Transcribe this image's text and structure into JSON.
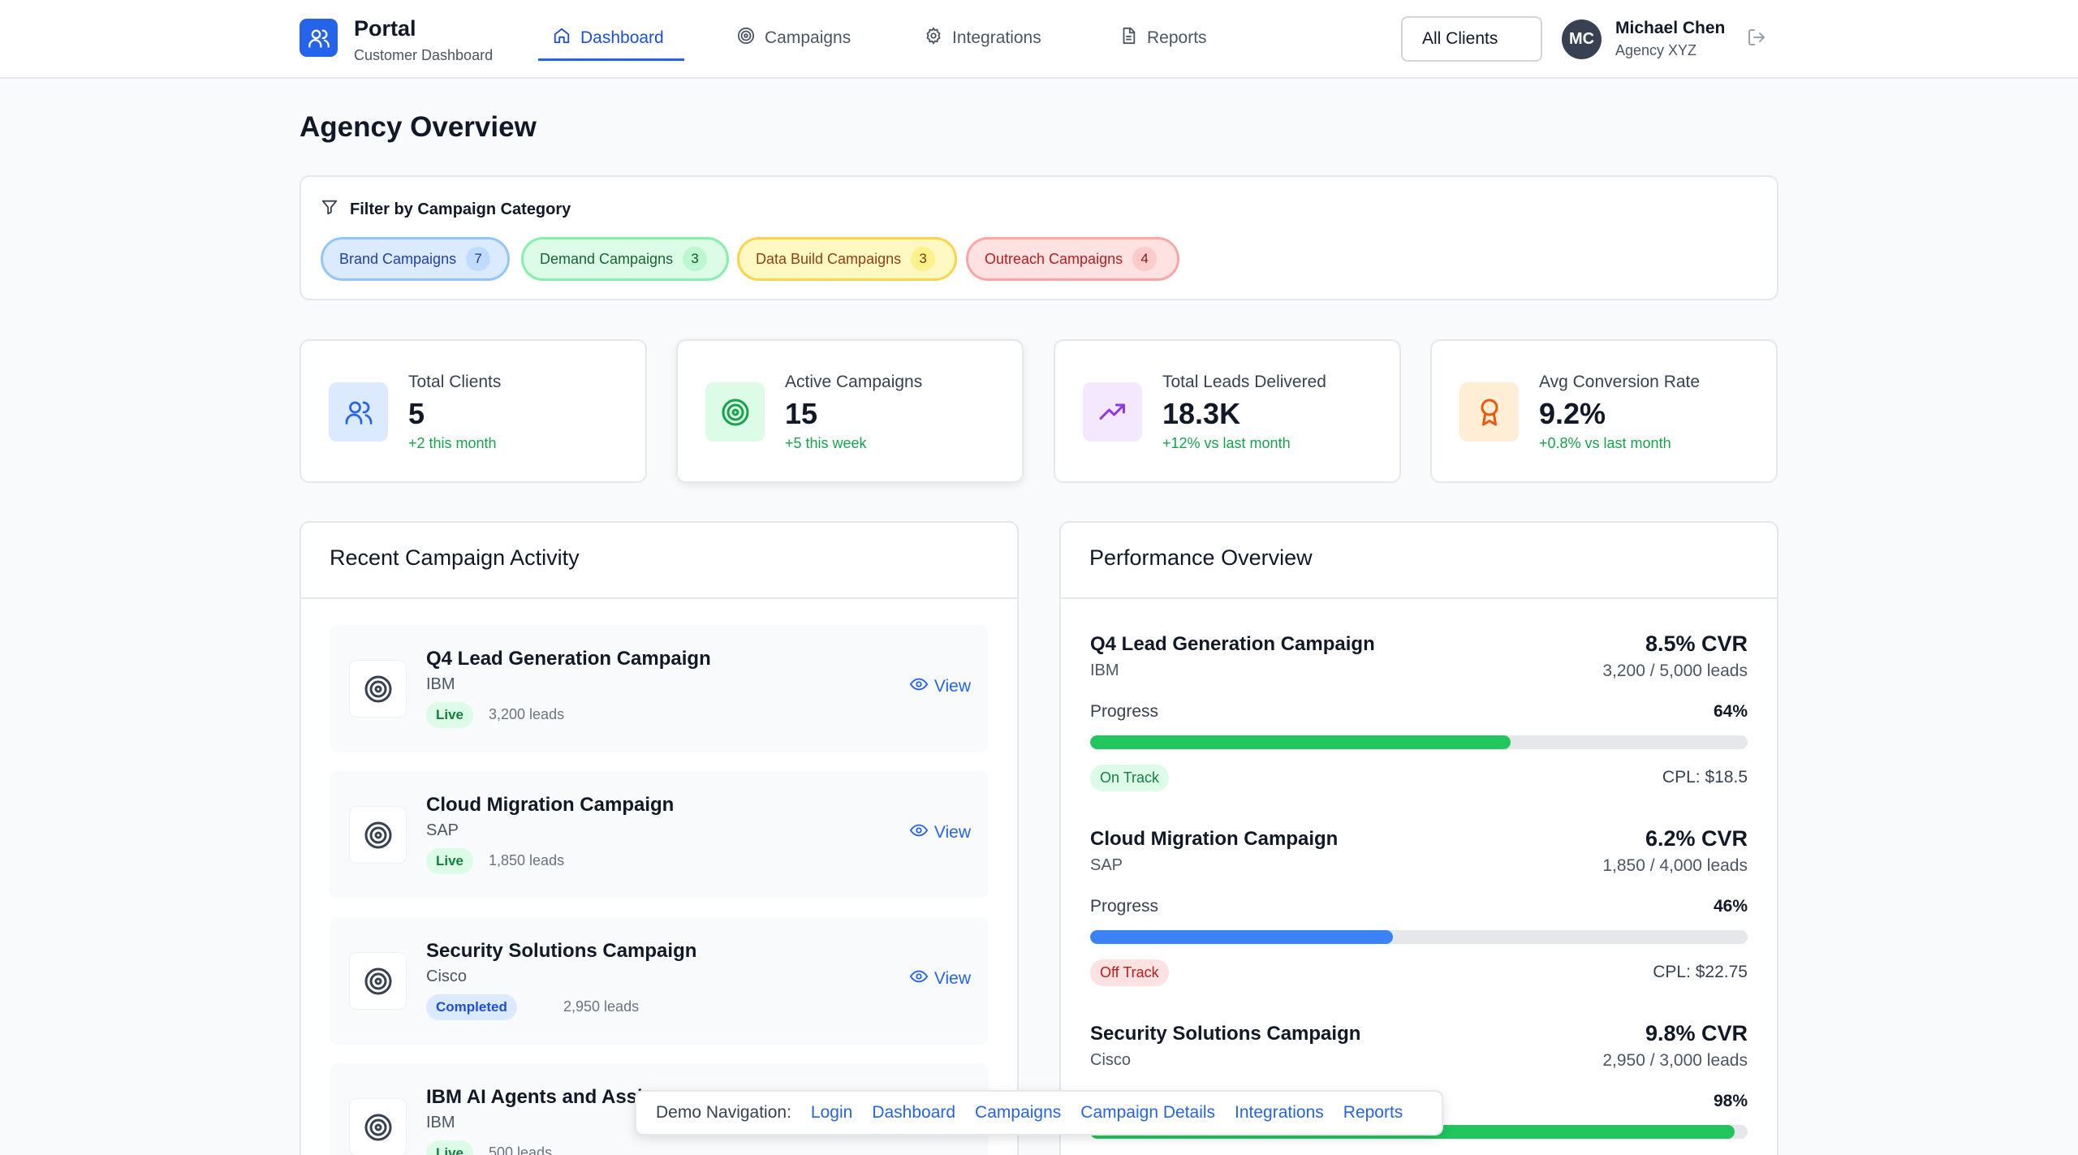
{
  "header": {
    "brand_title": "Portal",
    "brand_subtitle": "Customer Dashboard",
    "nav": [
      {
        "label": "Dashboard",
        "icon": "home-icon",
        "active": true
      },
      {
        "label": "Campaigns",
        "icon": "target-icon",
        "active": false
      },
      {
        "label": "Integrations",
        "icon": "gear-icon",
        "active": false
      },
      {
        "label": "Reports",
        "icon": "document-icon",
        "active": false
      }
    ],
    "client_select": "All Clients",
    "user": {
      "initials": "MC",
      "name": "Michael Chen",
      "org": "Agency XYZ"
    }
  },
  "page_title": "Agency Overview",
  "filter": {
    "heading": "Filter by Campaign Category",
    "chips": [
      {
        "label": "Brand Campaigns",
        "count": "7"
      },
      {
        "label": "Demand Campaigns",
        "count": "3"
      },
      {
        "label": "Data Build Campaigns",
        "count": "3"
      },
      {
        "label": "Outreach Campaigns",
        "count": "4"
      }
    ]
  },
  "stats": [
    {
      "label": "Total Clients",
      "value": "5",
      "delta": "+2 this month",
      "icon": "users-icon"
    },
    {
      "label": "Active Campaigns",
      "value": "15",
      "delta": "+5 this week",
      "icon": "target-icon"
    },
    {
      "label": "Total Leads Delivered",
      "value": "18.3K",
      "delta": "+12% vs last month",
      "icon": "trending-up-icon"
    },
    {
      "label": "Avg Conversion Rate",
      "value": "9.2%",
      "delta": "+0.8% vs last month",
      "icon": "award-icon"
    }
  ],
  "activity": {
    "title": "Recent Campaign Activity",
    "view_label": "View",
    "items": [
      {
        "name": "Q4 Lead Generation Campaign",
        "client": "IBM",
        "status": "Live",
        "leads": "3,200 leads"
      },
      {
        "name": "Cloud Migration Campaign",
        "client": "SAP",
        "status": "Live",
        "leads": "1,850 leads"
      },
      {
        "name": "Security Solutions Campaign",
        "client": "Cisco",
        "status": "Completed",
        "leads": "2,950 leads"
      },
      {
        "name": "IBM AI Agents and Assi",
        "client": "IBM",
        "status": "Live",
        "leads": "500 leads"
      }
    ]
  },
  "performance": {
    "title": "Performance Overview",
    "progress_label": "Progress",
    "items": [
      {
        "name": "Q4 Lead Generation Campaign",
        "client": "IBM",
        "cvr": "8.5% CVR",
        "leads": "3,200 / 5,000 leads",
        "progress": "64%",
        "progress_fraction": 0.64,
        "status": "On Track",
        "cpl": "CPL: $18.5",
        "bar_color": "#22c55e"
      },
      {
        "name": "Cloud Migration Campaign",
        "client": "SAP",
        "cvr": "6.2% CVR",
        "leads": "1,850 / 4,000 leads",
        "progress": "46%",
        "progress_fraction": 0.46,
        "status": "Off Track",
        "cpl": "CPL: $22.75",
        "bar_color": "#3b82f6"
      },
      {
        "name": "Security Solutions Campaign",
        "client": "Cisco",
        "cvr": "9.8% CVR",
        "leads": "2,950 / 3,000 leads",
        "progress": "98%",
        "progress_fraction": 0.98,
        "status": "",
        "cpl": "",
        "bar_color": "#22c55e"
      }
    ]
  },
  "demo_nav": {
    "label": "Demo Navigation:",
    "links": [
      "Login",
      "Dashboard",
      "Campaigns",
      "Campaign Details",
      "Integrations",
      "Reports"
    ]
  },
  "colors": {
    "accent": "#2563eb",
    "success": "#16a34a"
  }
}
